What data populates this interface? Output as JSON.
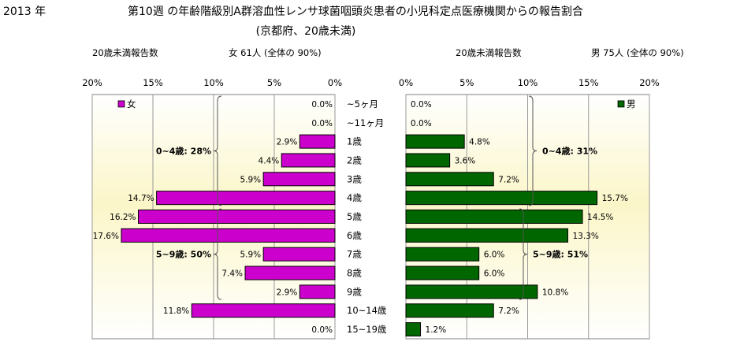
{
  "header": {
    "year": "2013 年",
    "title": "第10週 の年齢階級別A群溶血性レンサ球菌咽頭炎患者の小児科定点医療機関からの報告割合",
    "subtitle": "(京都府、20歳未満)"
  },
  "chart_data": [
    {
      "type": "bar",
      "orientation": "horizontal",
      "direction": "right-to-left",
      "count_label": "20歳未満報告数",
      "summary_label": "女 61人 (全体の 90%)",
      "legend": "女",
      "legend_placement": "top-left",
      "color": "#CC00CC",
      "categories": [
        "~5ヶ月",
        "~11ヶ月",
        "1歳",
        "2歳",
        "3歳",
        "4歳",
        "5歳",
        "6歳",
        "7歳",
        "8歳",
        "9歳",
        "10~14歳",
        "15~19歳"
      ],
      "values": [
        0.0,
        0.0,
        2.9,
        4.4,
        5.9,
        14.7,
        16.2,
        17.6,
        5.9,
        7.4,
        2.9,
        11.8,
        0.0
      ],
      "value_labels": [
        "0.0%",
        "0.0%",
        "2.9%",
        "4.4%",
        "5.9%",
        "14.7%",
        "16.2%",
        "17.6%",
        "5.9%",
        "7.4%",
        "2.9%",
        "11.8%",
        "0.0%"
      ],
      "xlim": [
        0,
        20
      ],
      "ticks": [
        "0%",
        "5%",
        "10%",
        "15%",
        "20%"
      ],
      "grid": true,
      "groups": [
        {
          "label": "0~4歳: 28%",
          "from": 0,
          "to": 5
        },
        {
          "label": "5~9歳: 50%",
          "from": 6,
          "to": 10
        }
      ]
    },
    {
      "type": "bar",
      "orientation": "horizontal",
      "direction": "left-to-right",
      "count_label": "20歳未満報告数",
      "summary_label": "男 75人 (全体の 90%)",
      "legend": "男",
      "legend_placement": "top-right",
      "color": "#006600",
      "categories": [
        "~5ヶ月",
        "~11ヶ月",
        "1歳",
        "2歳",
        "3歳",
        "4歳",
        "5歳",
        "6歳",
        "7歳",
        "8歳",
        "9歳",
        "10~14歳",
        "15~19歳"
      ],
      "values": [
        0.0,
        0.0,
        4.8,
        3.6,
        7.2,
        15.7,
        14.5,
        13.3,
        6.0,
        6.0,
        10.8,
        7.2,
        1.2
      ],
      "value_labels": [
        "0.0%",
        "0.0%",
        "4.8%",
        "3.6%",
        "7.2%",
        "15.7%",
        "14.5%",
        "13.3%",
        "6.0%",
        "6.0%",
        "10.8%",
        "7.2%",
        "1.2%"
      ],
      "xlim": [
        0,
        20
      ],
      "ticks": [
        "0%",
        "5%",
        "10%",
        "15%",
        "20%"
      ],
      "grid": true,
      "groups": [
        {
          "label": "0~4歳: 31%",
          "from": 0,
          "to": 5
        },
        {
          "label": "5~9歳: 51%",
          "from": 6,
          "to": 10
        }
      ]
    }
  ]
}
